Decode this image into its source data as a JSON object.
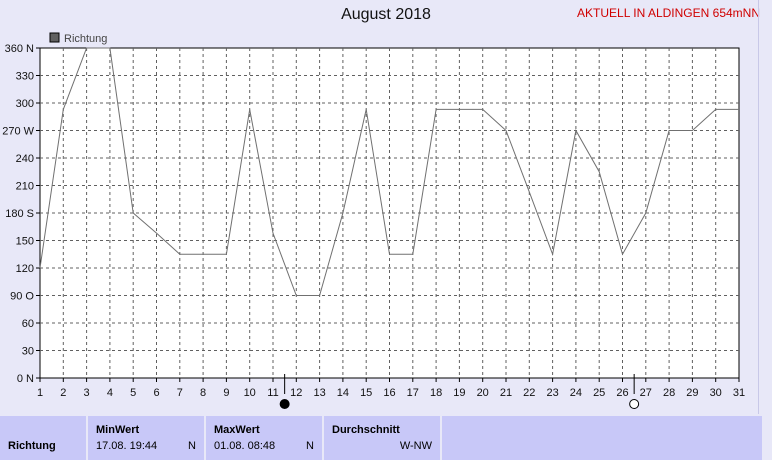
{
  "title": "August 2018",
  "top_right": "AKTUELL IN ALDINGEN 654mNN",
  "chart_data": {
    "type": "line",
    "title": "August 2018",
    "legend": [
      {
        "name": "Richtung",
        "color": "#606060"
      }
    ],
    "x": [
      1,
      2,
      3,
      4,
      5,
      6,
      7,
      8,
      9,
      10,
      11,
      12,
      13,
      14,
      15,
      16,
      17,
      18,
      19,
      20,
      21,
      22,
      23,
      24,
      25,
      26,
      27,
      28,
      29,
      30,
      31
    ],
    "x_tick_labels": [
      "1",
      "2",
      "3",
      "4",
      "5",
      "6",
      "7",
      "8",
      "9",
      "10",
      "11",
      "12",
      "13",
      "14",
      "15",
      "16",
      "17",
      "18",
      "19",
      "20",
      "21",
      "22",
      "23",
      "24",
      "25",
      "26",
      "27",
      "28",
      "29",
      "30",
      "31"
    ],
    "series": [
      {
        "name": "Richtung",
        "color": "#707070",
        "values": [
          120,
          293,
          360,
          360,
          180,
          158,
          135,
          135,
          135,
          293,
          158,
          90,
          90,
          180,
          293,
          135,
          135,
          293,
          293,
          293,
          270,
          203,
          135,
          270,
          225,
          135,
          180,
          270,
          270,
          293,
          293
        ]
      }
    ],
    "ylim": [
      0,
      360
    ],
    "y_ticks": [
      0,
      30,
      60,
      90,
      120,
      150,
      180,
      210,
      240,
      270,
      300,
      330,
      360
    ],
    "y_tick_labels": [
      "0 N",
      "30",
      "60",
      "90 O",
      "120",
      "150",
      "180 S",
      "210",
      "240",
      "270 W",
      "300",
      "330",
      "360 N"
    ],
    "grid": true,
    "legend_position": "top-left",
    "moon_markers": [
      {
        "day": 11.5,
        "phase": "new-moon"
      },
      {
        "day": 26.5,
        "phase": "full-moon"
      }
    ]
  },
  "stats": {
    "row_label": "Richtung",
    "min_head": "MinWert",
    "min_date": "17.08.  19:44",
    "min_dir": "N",
    "max_head": "MaxWert",
    "max_date": "01.08.  08:48",
    "max_dir": "N",
    "avg_head": "Durchschnitt",
    "avg_val": "W-NW"
  }
}
